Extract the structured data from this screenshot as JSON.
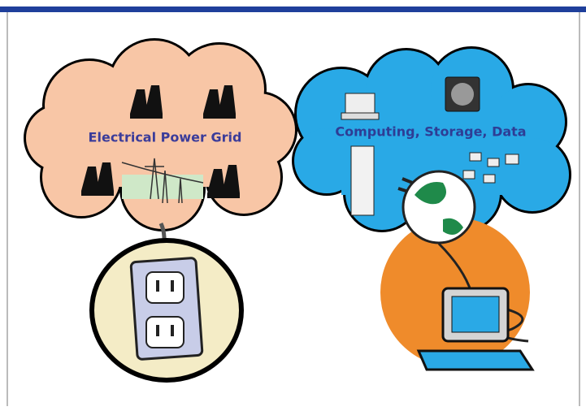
{
  "diagram": {
    "nodes": [
      {
        "label": "Electrical Power Grid"
      },
      {
        "label": "Computing, Storage, Data"
      }
    ]
  }
}
